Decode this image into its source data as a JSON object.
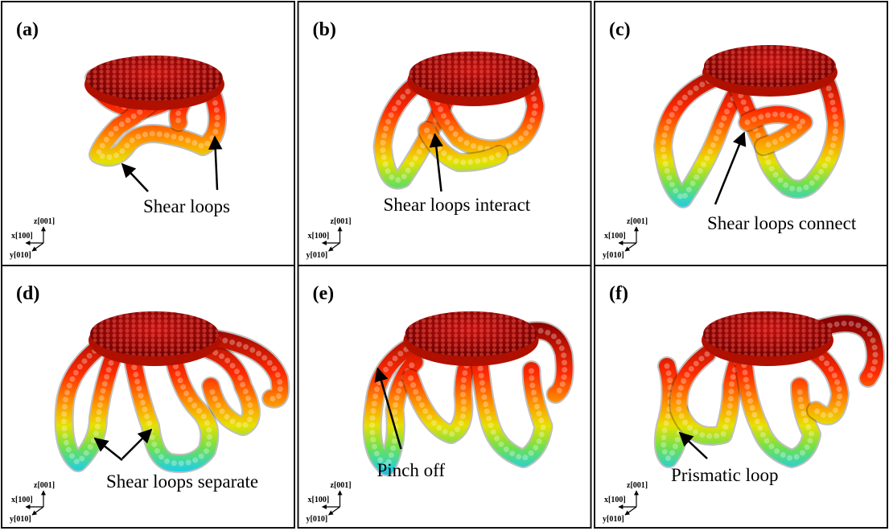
{
  "panels": [
    {
      "label": "(a)",
      "annotation": "Shear loops",
      "axes": {
        "z": "z[001]",
        "x": "x[100]",
        "y": "y[010]"
      }
    },
    {
      "label": "(b)",
      "annotation": "Shear loops interact",
      "axes": {
        "z": "z[001]",
        "x": "x[100]",
        "y": "y[010]"
      }
    },
    {
      "label": "(c)",
      "annotation": "Shear loops connect",
      "axes": {
        "z": "z[001]",
        "x": "x[100]",
        "y": "y[010]"
      }
    },
    {
      "label": "(d)",
      "annotation": "Shear loops separate",
      "axes": {
        "z": "z[001]",
        "x": "x[100]",
        "y": "y[010]"
      }
    },
    {
      "label": "(e)",
      "annotation": "Pinch off",
      "axes": {
        "z": "z[001]",
        "x": "x[100]",
        "y": "y[010]"
      }
    },
    {
      "label": "(f)",
      "annotation": "Prismatic loop",
      "axes": {
        "z": "z[001]",
        "x": "x[100]",
        "y": "y[010]"
      }
    }
  ]
}
